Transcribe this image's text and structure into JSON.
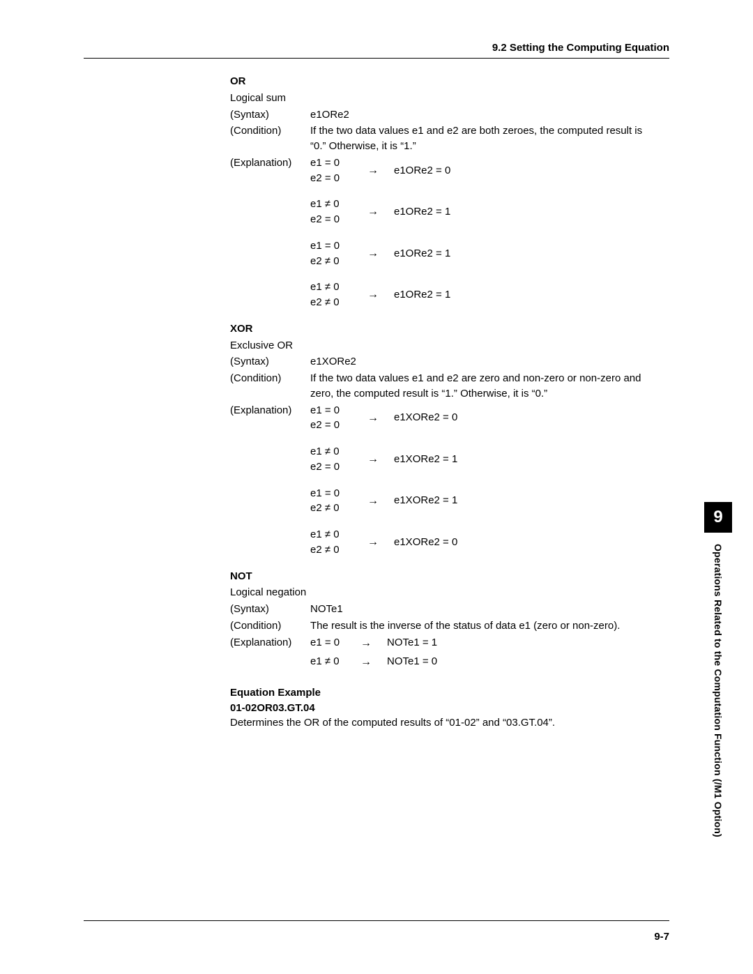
{
  "header": {
    "title": "9.2  Setting the Computing Equation"
  },
  "or": {
    "title": "OR",
    "desc": "Logical sum",
    "syntax_label": "(Syntax)",
    "syntax_value": "e1ORe2",
    "condition_label": "(Condition)",
    "condition_value": "If the two data values e1 and e2 are both zeroes, the computed result is “0.”  Otherwise, it is “1.”",
    "explanation_label": "(Explanation)",
    "cases": [
      {
        "e1": "e1 = 0",
        "e2": "e2 = 0",
        "arrow": "→",
        "res": "e1ORe2 = 0"
      },
      {
        "e1": "e1 ≠ 0",
        "e2": "e2 = 0",
        "arrow": "→",
        "res": "e1ORe2 = 1"
      },
      {
        "e1": "e1 = 0",
        "e2": "e2 ≠ 0",
        "arrow": "→",
        "res": "e1ORe2 = 1"
      },
      {
        "e1": "e1 ≠ 0",
        "e2": "e2 ≠ 0",
        "arrow": "→",
        "res": "e1ORe2 = 1"
      }
    ]
  },
  "xor": {
    "title": "XOR",
    "desc": "Exclusive OR",
    "syntax_label": "(Syntax)",
    "syntax_value": "e1XORe2",
    "condition_label": "(Condition)",
    "condition_value": "If the two data values e1 and e2 are zero and non-zero or non-zero and zero, the computed result is “1.”  Otherwise, it is “0.”",
    "explanation_label": "(Explanation)",
    "cases": [
      {
        "e1": "e1 = 0",
        "e2": "e2 = 0",
        "arrow": "→",
        "res": "e1XORe2 = 0"
      },
      {
        "e1": "e1 ≠ 0",
        "e2": "e2 = 0",
        "arrow": "→",
        "res": "e1XORe2 = 1"
      },
      {
        "e1": "e1 = 0",
        "e2": "e2 ≠ 0",
        "arrow": "→",
        "res": "e1XORe2 = 1"
      },
      {
        "e1": "e1 ≠ 0",
        "e2": "e2 ≠ 0",
        "arrow": "→",
        "res": "e1XORe2 = 0"
      }
    ]
  },
  "not": {
    "title": "NOT",
    "desc": "Logical negation",
    "syntax_label": "(Syntax)",
    "syntax_value": "NOTe1",
    "condition_label": "(Condition)",
    "condition_value": "The result is the inverse of the status of data e1 (zero or non-zero).",
    "explanation_label": "(Explanation)",
    "cases": [
      {
        "e1": "e1 = 0",
        "arrow": "→",
        "res": "NOTe1 = 1"
      },
      {
        "e1": "e1 ≠ 0",
        "arrow": "→",
        "res": "NOTe1 = 0"
      }
    ]
  },
  "example": {
    "title": "Equation Example",
    "eq": "01-02OR03.GT.04",
    "desc": "Determines the OR of the computed results of “01-02” and “03.GT.04”."
  },
  "footer": {
    "page_num": "9-7"
  },
  "side": {
    "chapter": "9",
    "text": "Operations Related to the Computation Function (/M1 Option)"
  }
}
